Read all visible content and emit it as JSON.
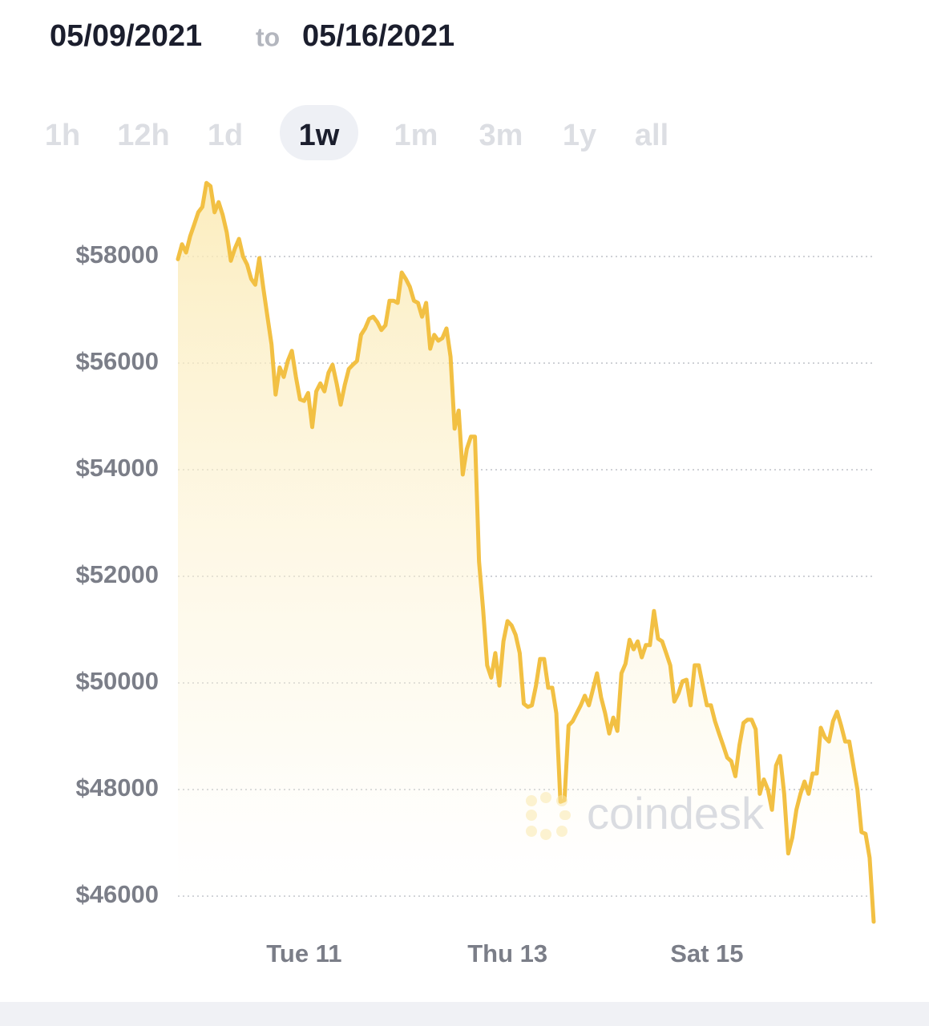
{
  "header": {
    "start_date": "05/09/2021",
    "to": "to",
    "end_date": "05/16/2021"
  },
  "range_buttons": {
    "options": [
      "1h",
      "12h",
      "1d",
      "1w",
      "1m",
      "3m",
      "1y",
      "all"
    ],
    "active_index": 3
  },
  "chart_data": {
    "type": "line",
    "color": "#f2c043",
    "watermark": "coindesk",
    "grid": true,
    "ylim": [
      45400,
      59500
    ],
    "yticks": [
      {
        "value": 46000,
        "label": "$46000"
      },
      {
        "value": 48000,
        "label": "$48000"
      },
      {
        "value": 50000,
        "label": "$50000"
      },
      {
        "value": 52000,
        "label": "$52000"
      },
      {
        "value": 54000,
        "label": "$54000"
      },
      {
        "value": 56000,
        "label": "$56000"
      },
      {
        "value": 58000,
        "label": "$58000"
      }
    ],
    "categories": [
      null,
      null,
      null,
      null,
      null,
      null,
      null,
      null,
      null,
      null,
      null,
      null,
      null,
      null,
      null,
      null,
      null,
      null,
      null,
      null,
      null,
      null,
      null,
      null,
      null,
      null,
      null,
      null,
      null,
      null,
      null,
      "Tue 11",
      null,
      null,
      null,
      null,
      null,
      null,
      null,
      null,
      null,
      null,
      null,
      null,
      null,
      null,
      null,
      null,
      null,
      null,
      null,
      null,
      null,
      null,
      null,
      null,
      null,
      null,
      null,
      null,
      null,
      null,
      null,
      null,
      null,
      null,
      null,
      null,
      null,
      null,
      null,
      null,
      null,
      null,
      null,
      null,
      null,
      null,
      null,
      null,
      null,
      "Thu 13",
      null,
      null,
      null,
      null,
      null,
      null,
      null,
      null,
      null,
      null,
      null,
      null,
      null,
      null,
      null,
      null,
      null,
      null,
      null,
      null,
      null,
      null,
      null,
      null,
      null,
      null,
      null,
      null,
      null,
      null,
      null,
      null,
      null,
      null,
      null,
      null,
      null,
      null,
      null,
      null,
      null,
      null,
      null,
      null,
      null,
      null,
      null,
      null,
      "Sat 15",
      null,
      null,
      null,
      null,
      null,
      null,
      null,
      null,
      null,
      null,
      null,
      null,
      null,
      null,
      null,
      null,
      null,
      null,
      null,
      null,
      null,
      null,
      null,
      null,
      null,
      null,
      null,
      null,
      null,
      null,
      null,
      null,
      null,
      null,
      null,
      null,
      null,
      null,
      null,
      null,
      null
    ],
    "values": [
      57950,
      58230,
      58075,
      58380,
      58600,
      58830,
      58930,
      59380,
      59320,
      58830,
      59020,
      58780,
      58450,
      57920,
      58150,
      58330,
      58000,
      57850,
      57580,
      57470,
      57970,
      57400,
      56870,
      56350,
      55410,
      55920,
      55740,
      56040,
      56230,
      55740,
      55320,
      55290,
      55440,
      54800,
      55470,
      55620,
      55470,
      55820,
      55970,
      55620,
      55220,
      55590,
      55890,
      55970,
      56040,
      56530,
      56650,
      56830,
      56870,
      56770,
      56620,
      56710,
      57170,
      57170,
      57130,
      57700,
      57580,
      57430,
      57170,
      57130,
      56870,
      57130,
      56270,
      56530,
      56420,
      56470,
      56650,
      56120,
      54770,
      55110,
      53910,
      54390,
      54620,
      54620,
      52280,
      51380,
      50330,
      50100,
      50560,
      49950,
      50780,
      51160,
      51080,
      50900,
      50560,
      49610,
      49550,
      49580,
      49950,
      50450,
      50450,
      49910,
      49910,
      49430,
      47770,
      47800,
      49200,
      49280,
      49430,
      49580,
      49760,
      49580,
      49880,
      50180,
      49730,
      49430,
      49050,
      49350,
      49100,
      50180,
      50360,
      50810,
      50630,
      50780,
      50480,
      50710,
      50710,
      51350,
      50830,
      50780,
      50560,
      50330,
      49650,
      49800,
      50030,
      50060,
      49580,
      50330,
      50330,
      49950,
      49580,
      49580,
      49280,
      49050,
      48830,
      48600,
      48530,
      48250,
      48830,
      49250,
      49310,
      49310,
      49130,
      47920,
      48190,
      48000,
      47620,
      48450,
      48630,
      47920,
      46800,
      47100,
      47620,
      47920,
      48150,
      47920,
      48300,
      48300,
      49160,
      48980,
      48900,
      49280,
      49460,
      49200,
      48900,
      48900,
      48450,
      48000,
      47200,
      47170,
      46720,
      45520
    ]
  }
}
